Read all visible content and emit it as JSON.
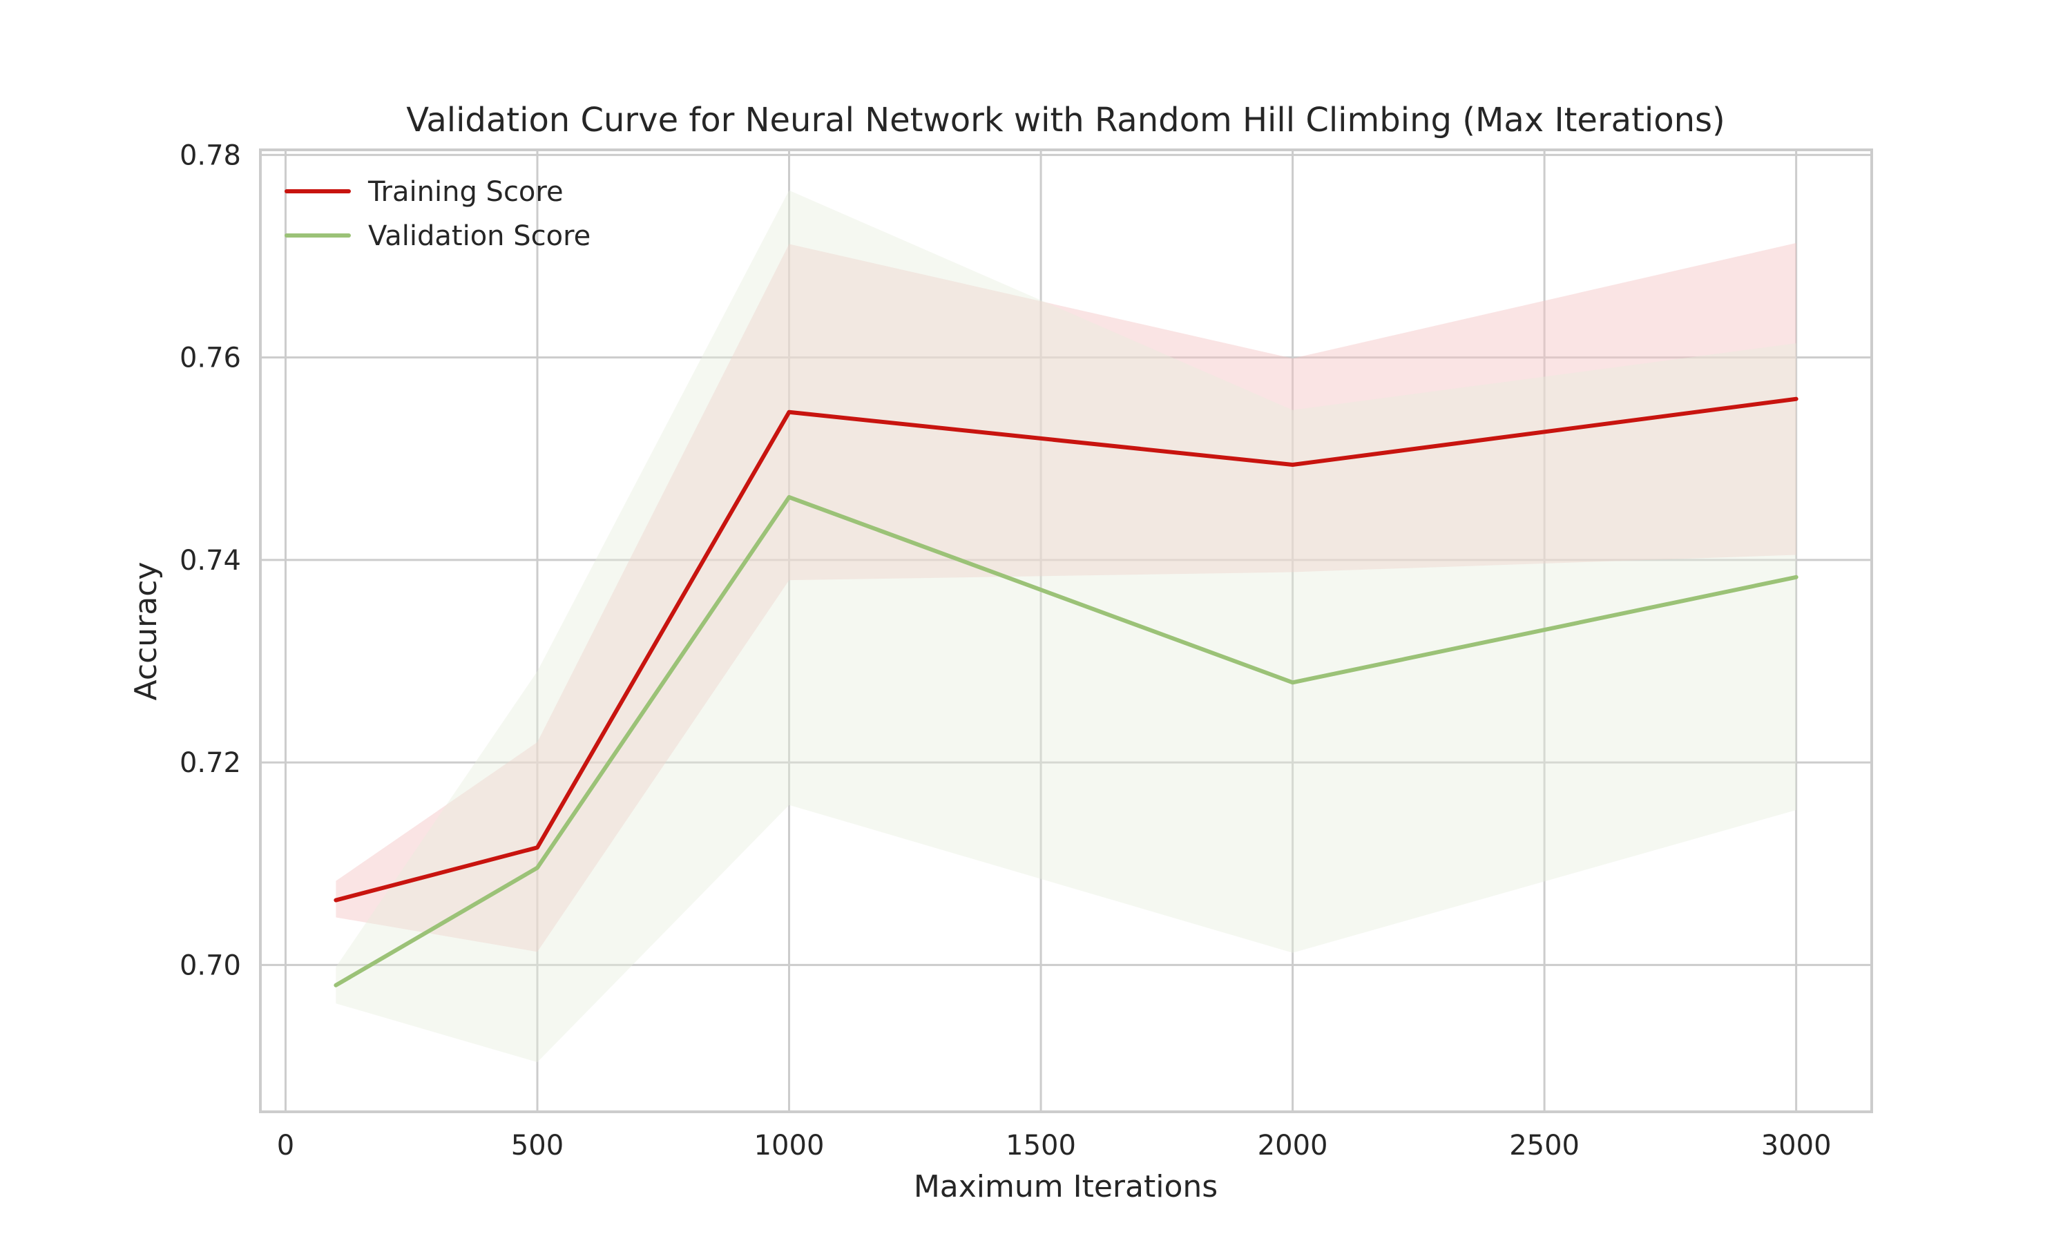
{
  "chart_data": {
    "type": "line",
    "title": "Validation Curve for Neural Network with Random Hill Climbing (Max Iterations)",
    "xlabel": "Maximum Iterations",
    "ylabel": "Accuracy",
    "x": [
      100,
      500,
      1000,
      2000,
      3000
    ],
    "xlim": [
      -50,
      3150
    ],
    "ylim": [
      0.6855,
      0.7805
    ],
    "xticks": [
      0,
      500,
      1000,
      1500,
      2000,
      2500,
      3000
    ],
    "xtick_labels": [
      "0",
      "500",
      "1000",
      "1500",
      "2000",
      "2500",
      "3000"
    ],
    "yticks": [
      0.7,
      0.72,
      0.74,
      0.76,
      0.78
    ],
    "ytick_labels": [
      "0.70",
      "0.72",
      "0.74",
      "0.76",
      "0.78"
    ],
    "grid": true,
    "legend_position": "top-left",
    "series": [
      {
        "name": "Training Score",
        "color": "#c8140f",
        "band_color": "#f4c4c4",
        "values": [
          0.7064,
          0.7116,
          0.7546,
          0.7494,
          0.7559
        ],
        "upper": [
          0.7083,
          0.722,
          0.7712,
          0.7599,
          0.7713
        ],
        "lower": [
          0.7047,
          0.7013,
          0.738,
          0.7388,
          0.7405
        ]
      },
      {
        "name": "Validation Score",
        "color": "#9bc277",
        "band_color": "#e6eedb",
        "values": [
          0.698,
          0.7096,
          0.7462,
          0.7279,
          0.7383
        ],
        "upper": [
          0.6998,
          0.729,
          0.7765,
          0.7548,
          0.7614
        ],
        "lower": [
          0.6962,
          0.6904,
          0.7158,
          0.7012,
          0.7153
        ]
      }
    ]
  }
}
